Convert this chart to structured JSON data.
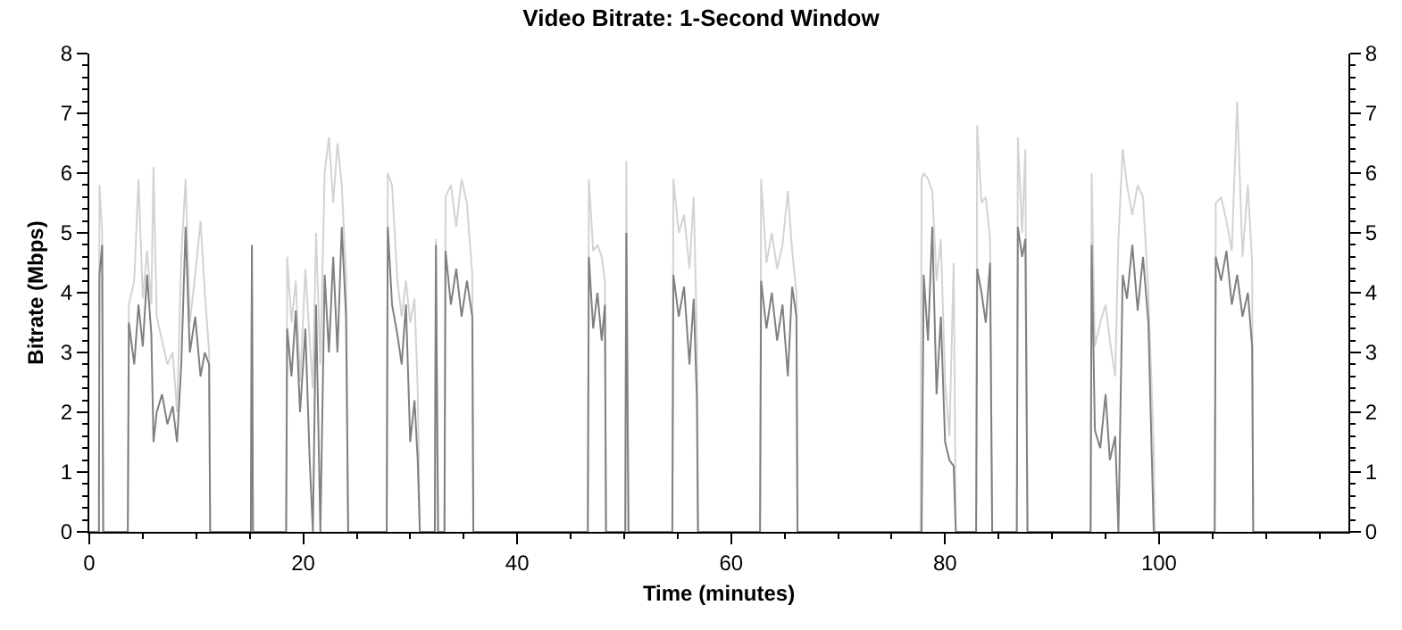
{
  "chart_data": {
    "type": "line",
    "title": "Video Bitrate: 1-Second Window",
    "xlabel": "Time (minutes)",
    "ylabel": "Bitrate (Mbps)",
    "x": [
      0,
      0.9,
      0.95,
      1.2,
      1.3,
      3.6,
      3.7,
      4.2,
      4.6,
      5.0,
      5.4,
      5.8,
      6.0,
      6.3,
      6.8,
      7.3,
      7.8,
      8.2,
      8.6,
      9.0,
      9.4,
      9.9,
      10.4,
      10.8,
      11.2,
      11.3,
      15.1,
      15.2,
      15.3,
      18.4,
      18.5,
      18.9,
      19.3,
      19.7,
      20.2,
      20.6,
      20.9,
      21.2,
      21.6,
      22.0,
      22.4,
      22.8,
      23.2,
      23.6,
      24.0,
      24.2,
      27.8,
      27.9,
      28.3,
      28.8,
      29.2,
      29.6,
      30.0,
      30.4,
      30.7,
      30.9,
      32.3,
      32.4,
      32.6,
      33.2,
      33.3,
      33.8,
      34.3,
      34.8,
      35.3,
      35.8,
      35.9,
      46.6,
      46.7,
      47.1,
      47.5,
      47.9,
      48.2,
      48.3,
      50.1,
      50.2,
      50.4,
      54.5,
      54.6,
      55.1,
      55.6,
      56.1,
      56.5,
      56.8,
      56.9,
      62.7,
      62.8,
      63.3,
      63.8,
      64.3,
      64.8,
      65.3,
      65.7,
      66.1,
      66.2,
      77.7,
      77.8,
      78.0,
      78.4,
      78.8,
      79.2,
      79.6,
      80.0,
      80.4,
      80.8,
      81.0,
      82.9,
      83.0,
      83.4,
      83.8,
      84.2,
      84.4,
      86.7,
      86.8,
      87.2,
      87.5,
      87.7,
      93.6,
      93.7,
      94.0,
      94.5,
      95.0,
      95.4,
      95.9,
      96.2,
      96.6,
      97.0,
      97.5,
      98.0,
      98.5,
      99.0,
      99.5,
      99.6,
      105.2,
      105.3,
      105.8,
      106.3,
      106.8,
      107.3,
      107.8,
      108.3,
      108.7,
      108.8,
      117.7
    ],
    "series": [
      {
        "color": "#d3d3d3",
        "values": [
          0,
          0,
          5.8,
          5.0,
          0,
          0,
          3.8,
          4.2,
          5.9,
          3.9,
          4.7,
          3.8,
          6.1,
          3.6,
          3.2,
          2.8,
          3.0,
          2.0,
          4.6,
          5.9,
          3.5,
          4.3,
          5.2,
          4.0,
          3.0,
          0,
          0,
          4.8,
          0,
          0,
          4.6,
          3.5,
          4.2,
          2.5,
          4.4,
          3.2,
          2.4,
          5.0,
          2.8,
          6.0,
          6.6,
          5.5,
          6.5,
          5.8,
          4.3,
          0,
          0,
          6.0,
          5.8,
          4.2,
          3.6,
          4.2,
          3.5,
          3.9,
          2.4,
          0,
          0,
          4.9,
          0,
          0,
          5.6,
          5.8,
          5.1,
          5.9,
          5.5,
          4.3,
          0,
          0,
          5.9,
          4.7,
          4.8,
          4.6,
          4.2,
          0,
          0,
          6.2,
          0,
          0,
          5.9,
          5.0,
          5.3,
          4.4,
          5.6,
          3.2,
          0,
          0,
          5.9,
          4.5,
          5.0,
          4.4,
          4.8,
          5.7,
          4.7,
          4.0,
          0,
          0,
          5.9,
          6.0,
          5.9,
          5.7,
          4.2,
          4.9,
          2.5,
          1.6,
          4.5,
          0,
          0,
          6.8,
          5.5,
          5.6,
          4.9,
          0,
          0,
          6.6,
          5.0,
          6.4,
          0,
          0,
          6.0,
          3.1,
          3.5,
          3.8,
          3.2,
          2.6,
          4.9,
          6.4,
          5.8,
          5.3,
          5.8,
          5.6,
          4.0,
          1.4,
          0,
          0,
          5.5,
          5.6,
          5.2,
          4.7,
          7.2,
          4.6,
          5.8,
          4.5,
          0,
          0
        ]
      },
      {
        "color": "#808080",
        "values": [
          0,
          0,
          4.3,
          4.8,
          0,
          0,
          3.5,
          2.8,
          3.8,
          3.1,
          4.3,
          3.3,
          1.5,
          2.0,
          2.3,
          1.8,
          2.1,
          1.5,
          2.8,
          5.1,
          3.0,
          3.6,
          2.6,
          3.0,
          2.8,
          0,
          0,
          4.8,
          0,
          0,
          3.4,
          2.6,
          3.7,
          2.0,
          3.4,
          1.2,
          0,
          3.8,
          0,
          4.3,
          3.0,
          4.6,
          3.0,
          5.1,
          3.6,
          0,
          0,
          5.1,
          3.8,
          3.3,
          2.8,
          3.8,
          1.5,
          2.2,
          1.2,
          0,
          0,
          4.8,
          0,
          0,
          4.7,
          3.8,
          4.4,
          3.6,
          4.2,
          3.6,
          0,
          0,
          4.6,
          3.4,
          4.0,
          3.2,
          3.8,
          0,
          0,
          5.0,
          0,
          0,
          4.3,
          3.6,
          4.1,
          2.8,
          3.9,
          2.2,
          0,
          0,
          4.2,
          3.4,
          4.0,
          3.2,
          3.8,
          2.6,
          4.1,
          3.6,
          0,
          0,
          0,
          4.3,
          3.2,
          5.1,
          2.3,
          3.6,
          1.5,
          1.2,
          1.1,
          0,
          0,
          4.4,
          4.0,
          3.5,
          4.5,
          0,
          0,
          5.1,
          4.6,
          4.9,
          0,
          0,
          4.8,
          1.7,
          1.4,
          2.3,
          1.2,
          1.6,
          0,
          4.3,
          3.9,
          4.8,
          3.7,
          4.6,
          3.5,
          0,
          0,
          0,
          4.6,
          4.2,
          4.7,
          3.8,
          4.3,
          3.6,
          4.0,
          3.1,
          0,
          0
        ]
      }
    ],
    "xlim": [
      0,
      117.7
    ],
    "xticks": [
      0,
      20,
      40,
      60,
      80,
      100
    ],
    "ylim": [
      0,
      8
    ],
    "yticks": [
      0,
      1,
      2,
      3,
      4,
      5,
      6,
      7,
      8
    ],
    "y2lim": [
      0,
      8
    ],
    "y2ticks": [
      0,
      1,
      2,
      3,
      4,
      5,
      6,
      7,
      8
    ],
    "marker": "none",
    "line_style": "solid"
  }
}
